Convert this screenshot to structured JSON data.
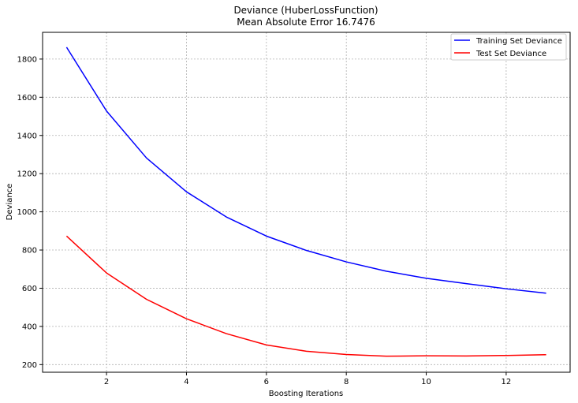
{
  "chart_data": {
    "type": "line",
    "title": "Deviance (HuberLossFunction)",
    "subtitle": "Mean Absolute Error 16.7476",
    "xlabel": "Boosting Iterations",
    "ylabel": "Deviance",
    "xlim": [
      0.4,
      13.6
    ],
    "ylim": [
      160,
      1940
    ],
    "xticks": [
      2,
      4,
      6,
      8,
      10,
      12
    ],
    "yticks": [
      200,
      400,
      600,
      800,
      1000,
      1200,
      1400,
      1600,
      1800
    ],
    "grid": true,
    "legend_position": "upper right",
    "x": [
      1,
      2,
      3,
      4,
      5,
      6,
      7,
      8,
      9,
      10,
      11,
      12,
      13
    ],
    "series": [
      {
        "name": "Training Set Deviance",
        "color": "#0000ff",
        "values": [
          1862,
          1528,
          1282,
          1105,
          973,
          873,
          798,
          738,
          689,
          652,
          624,
          597,
          574
        ]
      },
      {
        "name": "Test Set Deviance",
        "color": "#ff0000",
        "values": [
          873,
          680,
          542,
          440,
          362,
          303,
          270,
          253,
          244,
          246,
          245,
          248,
          252
        ]
      }
    ]
  }
}
